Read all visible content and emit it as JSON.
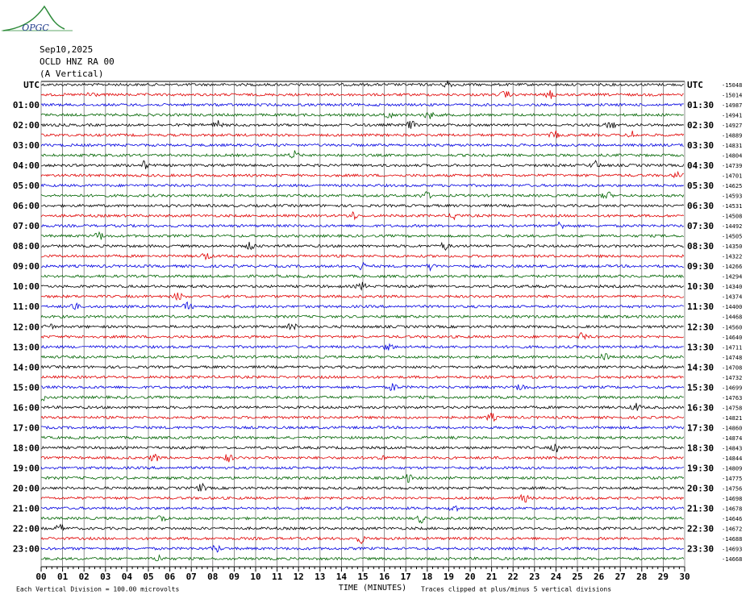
{
  "chart_data": {
    "type": "helicorder",
    "logo": "OPGC",
    "title": "Sep10,2025",
    "subtitle": "OCLD HNZ RA 00",
    "component": "(A Vertical)",
    "xlabel": "TIME (MINUTES)",
    "scale_note": "Each Vertical Division =  100.00 microvolts",
    "clip_note": "Traces clipped at plus/minus 5 vertical divisions",
    "xlim": [
      0,
      30
    ],
    "xticks": [
      {
        "value": 0,
        "label": "00"
      },
      {
        "value": 1,
        "label": "01"
      },
      {
        "value": 2,
        "label": "02"
      },
      {
        "value": 3,
        "label": "03"
      },
      {
        "value": 4,
        "label": "04"
      },
      {
        "value": 5,
        "label": "05"
      },
      {
        "value": 6,
        "label": "06"
      },
      {
        "value": 7,
        "label": "07"
      },
      {
        "value": 8,
        "label": "08"
      },
      {
        "value": 9,
        "label": "09"
      },
      10,
      11,
      12,
      13,
      14,
      15,
      16,
      17,
      18,
      19,
      20,
      21,
      22,
      23,
      24,
      25,
      26,
      27,
      28,
      29,
      30
    ],
    "colors": [
      "#000000",
      "#e00000",
      "#0000e0",
      "#006400"
    ],
    "left_labels": [
      "UTC",
      null,
      "01:00",
      null,
      "02:00",
      null,
      "03:00",
      null,
      "04:00",
      null,
      "05:00",
      null,
      "06:00",
      null,
      "07:00",
      null,
      "08:00",
      null,
      "09:00",
      null,
      "10:00",
      null,
      "11:00",
      null,
      "12:00",
      null,
      "13:00",
      null,
      "14:00",
      null,
      "15:00",
      null,
      "16:00",
      null,
      "17:00",
      null,
      "18:00",
      null,
      "19:00",
      null,
      "20:00",
      null,
      "21:00",
      null,
      "22:00",
      null,
      "23:00",
      null
    ],
    "right_labels": [
      "UTC",
      null,
      "01:30",
      null,
      "02:30",
      null,
      "03:30",
      null,
      "04:30",
      null,
      "05:30",
      null,
      "06:30",
      null,
      "07:30",
      null,
      "08:30",
      null,
      "09:30",
      null,
      "10:30",
      null,
      "11:30",
      null,
      "12:30",
      null,
      "13:30",
      null,
      "14:30",
      null,
      "15:30",
      null,
      "16:30",
      null,
      "17:30",
      null,
      "18:30",
      null,
      "19:30",
      null,
      "20:30",
      null,
      "21:30",
      null,
      "22:30",
      null,
      "23:30",
      null
    ],
    "offsets": [
      -15048,
      -15014,
      -14987,
      -14941,
      -14927,
      -14889,
      -14831,
      -14804,
      -14739,
      -14701,
      -14625,
      -14593,
      -14531,
      -14508,
      -14492,
      -14505,
      -14350,
      -14322,
      -14266,
      -14294,
      -14340,
      -14374,
      -14400,
      -14468,
      -14560,
      -14640,
      -14711,
      -14748,
      -14708,
      -14732,
      -14699,
      -14763,
      -14758,
      -14821,
      -14860,
      -14874,
      -14843,
      -14844,
      -14809,
      -14775,
      -14756,
      -14698,
      -14678,
      -14646,
      -14672,
      -14688,
      -14693,
      -14668
    ]
  }
}
